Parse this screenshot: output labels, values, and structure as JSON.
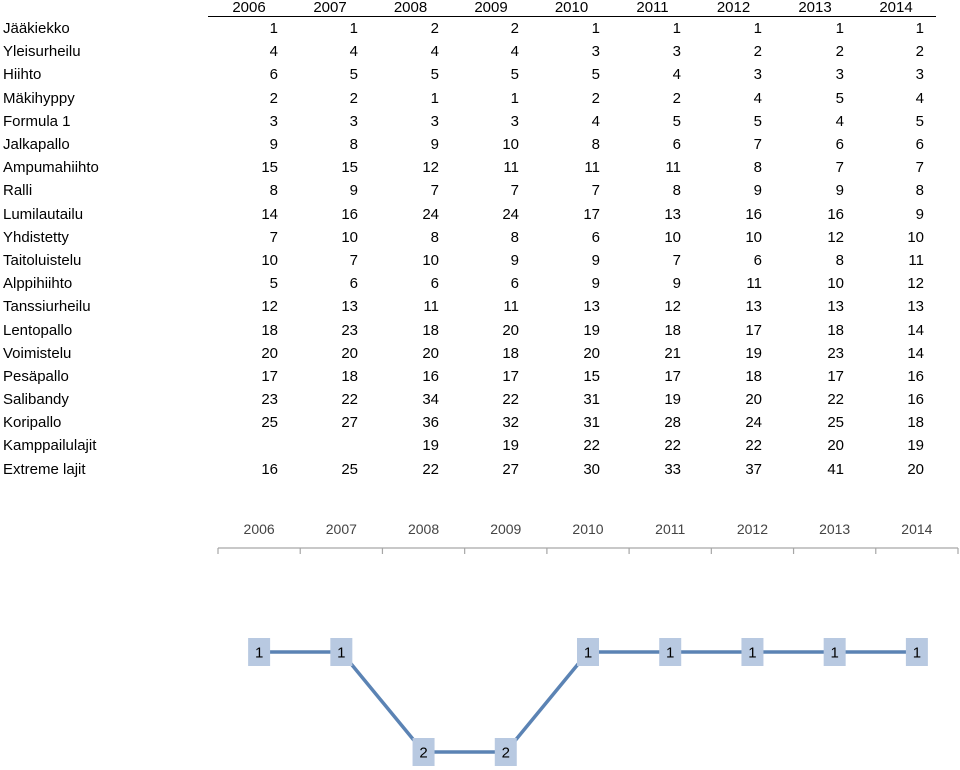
{
  "chart_data": [
    {
      "type": "table",
      "columns": [
        "2006",
        "2007",
        "2008",
        "2009",
        "2010",
        "2011",
        "2012",
        "2013",
        "2014"
      ],
      "rows": [
        {
          "label": "Jääkiekko",
          "values": [
            "1",
            "1",
            "2",
            "2",
            "1",
            "1",
            "1",
            "1",
            "1"
          ]
        },
        {
          "label": "Yleisurheilu",
          "values": [
            "4",
            "4",
            "4",
            "4",
            "3",
            "3",
            "2",
            "2",
            "2"
          ]
        },
        {
          "label": "Hiihto",
          "values": [
            "6",
            "5",
            "5",
            "5",
            "5",
            "4",
            "3",
            "3",
            "3"
          ]
        },
        {
          "label": "Mäkihyppy",
          "values": [
            "2",
            "2",
            "1",
            "1",
            "2",
            "2",
            "4",
            "5",
            "4"
          ]
        },
        {
          "label": "Formula 1",
          "values": [
            "3",
            "3",
            "3",
            "3",
            "4",
            "5",
            "5",
            "4",
            "5"
          ]
        },
        {
          "label": "Jalkapallo",
          "values": [
            "9",
            "8",
            "9",
            "10",
            "8",
            "6",
            "7",
            "6",
            "6"
          ]
        },
        {
          "label": "Ampumahiihto",
          "values": [
            "15",
            "15",
            "12",
            "11",
            "11",
            "11",
            "8",
            "7",
            "7"
          ]
        },
        {
          "label": "Ralli",
          "values": [
            "8",
            "9",
            "7",
            "7",
            "7",
            "8",
            "9",
            "9",
            "8"
          ]
        },
        {
          "label": "Lumilautailu",
          "values": [
            "14",
            "16",
            "24",
            "24",
            "17",
            "13",
            "16",
            "16",
            "9"
          ]
        },
        {
          "label": "Yhdistetty",
          "values": [
            "7",
            "10",
            "8",
            "8",
            "6",
            "10",
            "10",
            "12",
            "10"
          ]
        },
        {
          "label": "Taitoluistelu",
          "values": [
            "10",
            "7",
            "10",
            "9",
            "9",
            "7",
            "6",
            "8",
            "11"
          ]
        },
        {
          "label": "Alppihiihto",
          "values": [
            "5",
            "6",
            "6",
            "6",
            "9",
            "9",
            "11",
            "10",
            "12"
          ]
        },
        {
          "label": "Tanssiurheilu",
          "values": [
            "12",
            "13",
            "11",
            "11",
            "13",
            "12",
            "13",
            "13",
            "13"
          ]
        },
        {
          "label": "Lentopallo",
          "values": [
            "18",
            "23",
            "18",
            "20",
            "19",
            "18",
            "17",
            "18",
            "14"
          ]
        },
        {
          "label": "Voimistelu",
          "values": [
            "20",
            "20",
            "20",
            "18",
            "20",
            "21",
            "19",
            "23",
            "14"
          ]
        },
        {
          "label": "Pesäpallo",
          "values": [
            "17",
            "18",
            "16",
            "17",
            "15",
            "17",
            "18",
            "17",
            "16"
          ]
        },
        {
          "label": "Salibandy",
          "values": [
            "23",
            "22",
            "34",
            "22",
            "31",
            "19",
            "20",
            "22",
            "16"
          ]
        },
        {
          "label": "Koripallo",
          "values": [
            "25",
            "27",
            "36",
            "32",
            "31",
            "28",
            "24",
            "25",
            "18"
          ]
        },
        {
          "label": "Kamppailulajit",
          "values": [
            "",
            "",
            "19",
            "19",
            "22",
            "22",
            "22",
            "20",
            "19"
          ]
        },
        {
          "label": "Extreme lajit",
          "values": [
            "16",
            "25",
            "22",
            "27",
            "30",
            "33",
            "37",
            "41",
            "20"
          ]
        }
      ]
    },
    {
      "type": "line",
      "x": [
        "2006",
        "2007",
        "2008",
        "2009",
        "2010",
        "2011",
        "2012",
        "2013",
        "2014"
      ],
      "series": [
        {
          "values": [
            1,
            1,
            2,
            2,
            1,
            1,
            1,
            1,
            1
          ]
        }
      ],
      "y_inverted": true,
      "ylim": [
        1,
        2
      ],
      "x_axis_position": "top",
      "grid": false,
      "line_color": "#5b83b4",
      "label_box_color": "#b8c9e1"
    }
  ]
}
